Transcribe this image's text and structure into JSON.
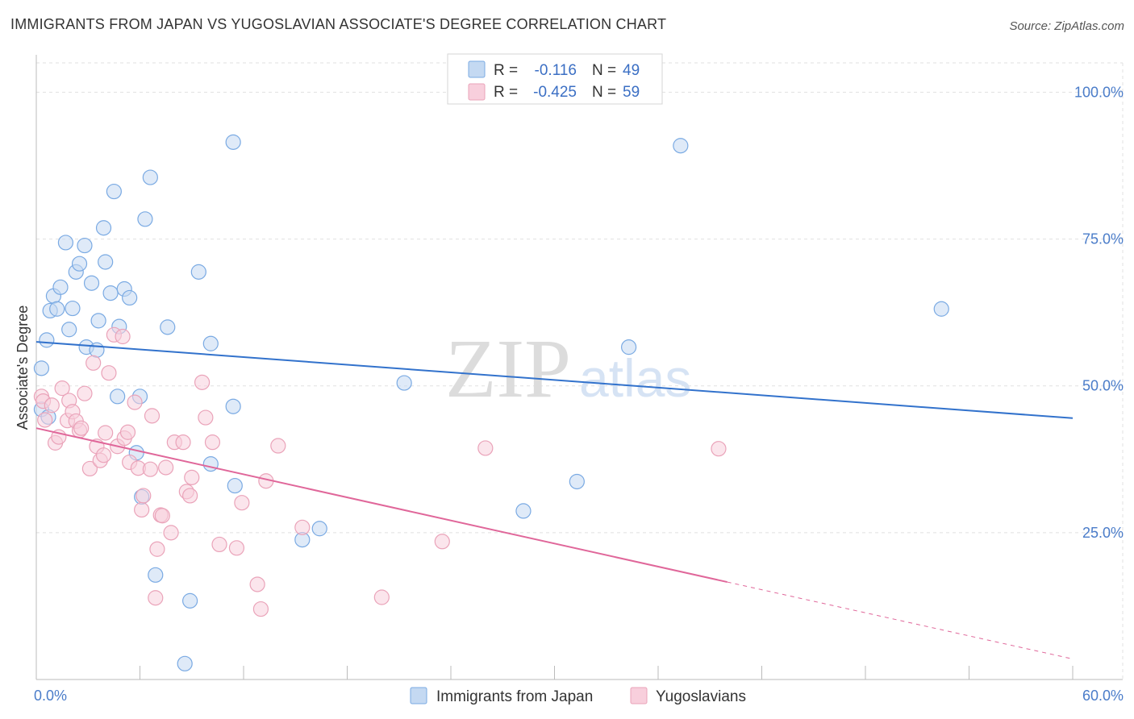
{
  "title": "IMMIGRANTS FROM JAPAN VS YUGOSLAVIAN ASSOCIATE'S DEGREE CORRELATION CHART",
  "source": "Source: ZipAtlas.com",
  "watermark": {
    "zip": "ZIP",
    "atlas": "atlas"
  },
  "chart_data": {
    "type": "scatter",
    "title": "IMMIGRANTS FROM JAPAN VS YUGOSLAVIAN ASSOCIATE'S DEGREE CORRELATION CHART",
    "xlabel": "",
    "ylabel": "Associate's Degree",
    "xlim": [
      0,
      60
    ],
    "ylim": [
      0,
      105
    ],
    "x_tick_labels": {
      "left": "0.0%",
      "right": "60.0%"
    },
    "y_ticks": [
      {
        "value": 25,
        "label": "25.0%"
      },
      {
        "value": 50,
        "label": "50.0%"
      },
      {
        "value": 75,
        "label": "75.0%"
      },
      {
        "value": 100,
        "label": "100.0%"
      }
    ],
    "grid": true,
    "legend_position": "top-center",
    "series": [
      {
        "name": "Immigrants from Japan",
        "color": "#7aaae3",
        "fill": "#c4d9f2",
        "line_color": "#3272cc",
        "R_label": "R =",
        "R": "-0.116",
        "N_label": "N =",
        "N": "49",
        "trend": {
          "x0": 0,
          "y0": 57.5,
          "x1": 60,
          "y1": 44.5,
          "solid_until": 60
        },
        "points": [
          [
            0.3,
            53
          ],
          [
            0.3,
            46
          ],
          [
            0.6,
            57.8
          ],
          [
            0.7,
            44.7
          ],
          [
            0.8,
            62.8
          ],
          [
            1.0,
            65.3
          ],
          [
            1.2,
            63.1
          ],
          [
            1.4,
            66.8
          ],
          [
            1.7,
            74.4
          ],
          [
            1.9,
            59.6
          ],
          [
            2.1,
            63.2
          ],
          [
            2.3,
            69.4
          ],
          [
            2.5,
            70.8
          ],
          [
            2.8,
            73.9
          ],
          [
            2.9,
            56.6
          ],
          [
            3.2,
            67.5
          ],
          [
            3.5,
            56.1
          ],
          [
            3.6,
            61.1
          ],
          [
            3.9,
            76.9
          ],
          [
            4.0,
            71.1
          ],
          [
            4.3,
            65.8
          ],
          [
            4.5,
            83.1
          ],
          [
            4.7,
            48.2
          ],
          [
            4.8,
            60.1
          ],
          [
            5.1,
            66.5
          ],
          [
            5.4,
            65.0
          ],
          [
            5.8,
            38.6
          ],
          [
            6.0,
            48.2
          ],
          [
            6.1,
            31.1
          ],
          [
            6.3,
            78.4
          ],
          [
            6.6,
            85.5
          ],
          [
            6.9,
            17.8
          ],
          [
            7.6,
            60.0
          ],
          [
            8.6,
            2.7
          ],
          [
            8.9,
            13.4
          ],
          [
            9.4,
            69.4
          ],
          [
            10.1,
            57.2
          ],
          [
            10.1,
            36.7
          ],
          [
            11.4,
            46.5
          ],
          [
            11.5,
            33.0
          ],
          [
            11.4,
            91.5
          ],
          [
            15.4,
            23.8
          ],
          [
            16.4,
            25.7
          ],
          [
            21.3,
            50.5
          ],
          [
            28.2,
            28.7
          ],
          [
            31.3,
            33.7
          ],
          [
            34.3,
            56.6
          ],
          [
            37.3,
            90.9
          ],
          [
            52.4,
            63.1
          ]
        ]
      },
      {
        "name": "Yugoslavians",
        "color": "#eaa3b9",
        "fill": "#f8cfdc",
        "line_color": "#e0679a",
        "R_label": "R =",
        "R": "-0.425",
        "N_label": "N =",
        "N": "59",
        "trend": {
          "x0": 0,
          "y0": 42.8,
          "x1": 60,
          "y1": 3.5,
          "solid_until": 40
        },
        "points": [
          [
            0.3,
            48.2
          ],
          [
            0.4,
            47.4
          ],
          [
            0.5,
            44.2
          ],
          [
            0.9,
            46.7
          ],
          [
            1.1,
            40.3
          ],
          [
            1.3,
            41.3
          ],
          [
            1.5,
            49.6
          ],
          [
            1.8,
            44.1
          ],
          [
            1.9,
            47.5
          ],
          [
            2.1,
            45.6
          ],
          [
            2.3,
            44.0
          ],
          [
            2.5,
            42.4
          ],
          [
            2.6,
            42.8
          ],
          [
            2.8,
            48.7
          ],
          [
            3.1,
            35.9
          ],
          [
            3.3,
            53.9
          ],
          [
            3.5,
            39.7
          ],
          [
            3.7,
            37.3
          ],
          [
            3.9,
            38.2
          ],
          [
            4.0,
            42.0
          ],
          [
            4.2,
            52.2
          ],
          [
            4.5,
            58.7
          ],
          [
            4.7,
            39.7
          ],
          [
            5.0,
            58.4
          ],
          [
            5.1,
            41.1
          ],
          [
            5.3,
            42.1
          ],
          [
            5.4,
            37.0
          ],
          [
            5.7,
            47.2
          ],
          [
            5.9,
            36.0
          ],
          [
            6.1,
            28.9
          ],
          [
            6.2,
            31.3
          ],
          [
            6.6,
            35.8
          ],
          [
            6.7,
            44.9
          ],
          [
            6.9,
            13.9
          ],
          [
            7.0,
            22.2
          ],
          [
            7.2,
            28.0
          ],
          [
            7.3,
            27.9
          ],
          [
            7.5,
            36.1
          ],
          [
            7.8,
            25.0
          ],
          [
            8.0,
            40.4
          ],
          [
            8.5,
            40.4
          ],
          [
            8.7,
            32.0
          ],
          [
            8.9,
            31.3
          ],
          [
            9.0,
            34.4
          ],
          [
            9.6,
            50.6
          ],
          [
            9.8,
            44.6
          ],
          [
            10.2,
            40.4
          ],
          [
            10.6,
            23.0
          ],
          [
            11.6,
            22.4
          ],
          [
            11.9,
            30.1
          ],
          [
            12.8,
            16.2
          ],
          [
            13.0,
            12.0
          ],
          [
            13.3,
            33.8
          ],
          [
            14.0,
            39.8
          ],
          [
            15.4,
            25.9
          ],
          [
            20.0,
            14.0
          ],
          [
            23.5,
            23.5
          ],
          [
            26.0,
            39.4
          ],
          [
            39.5,
            39.3
          ]
        ]
      }
    ]
  }
}
